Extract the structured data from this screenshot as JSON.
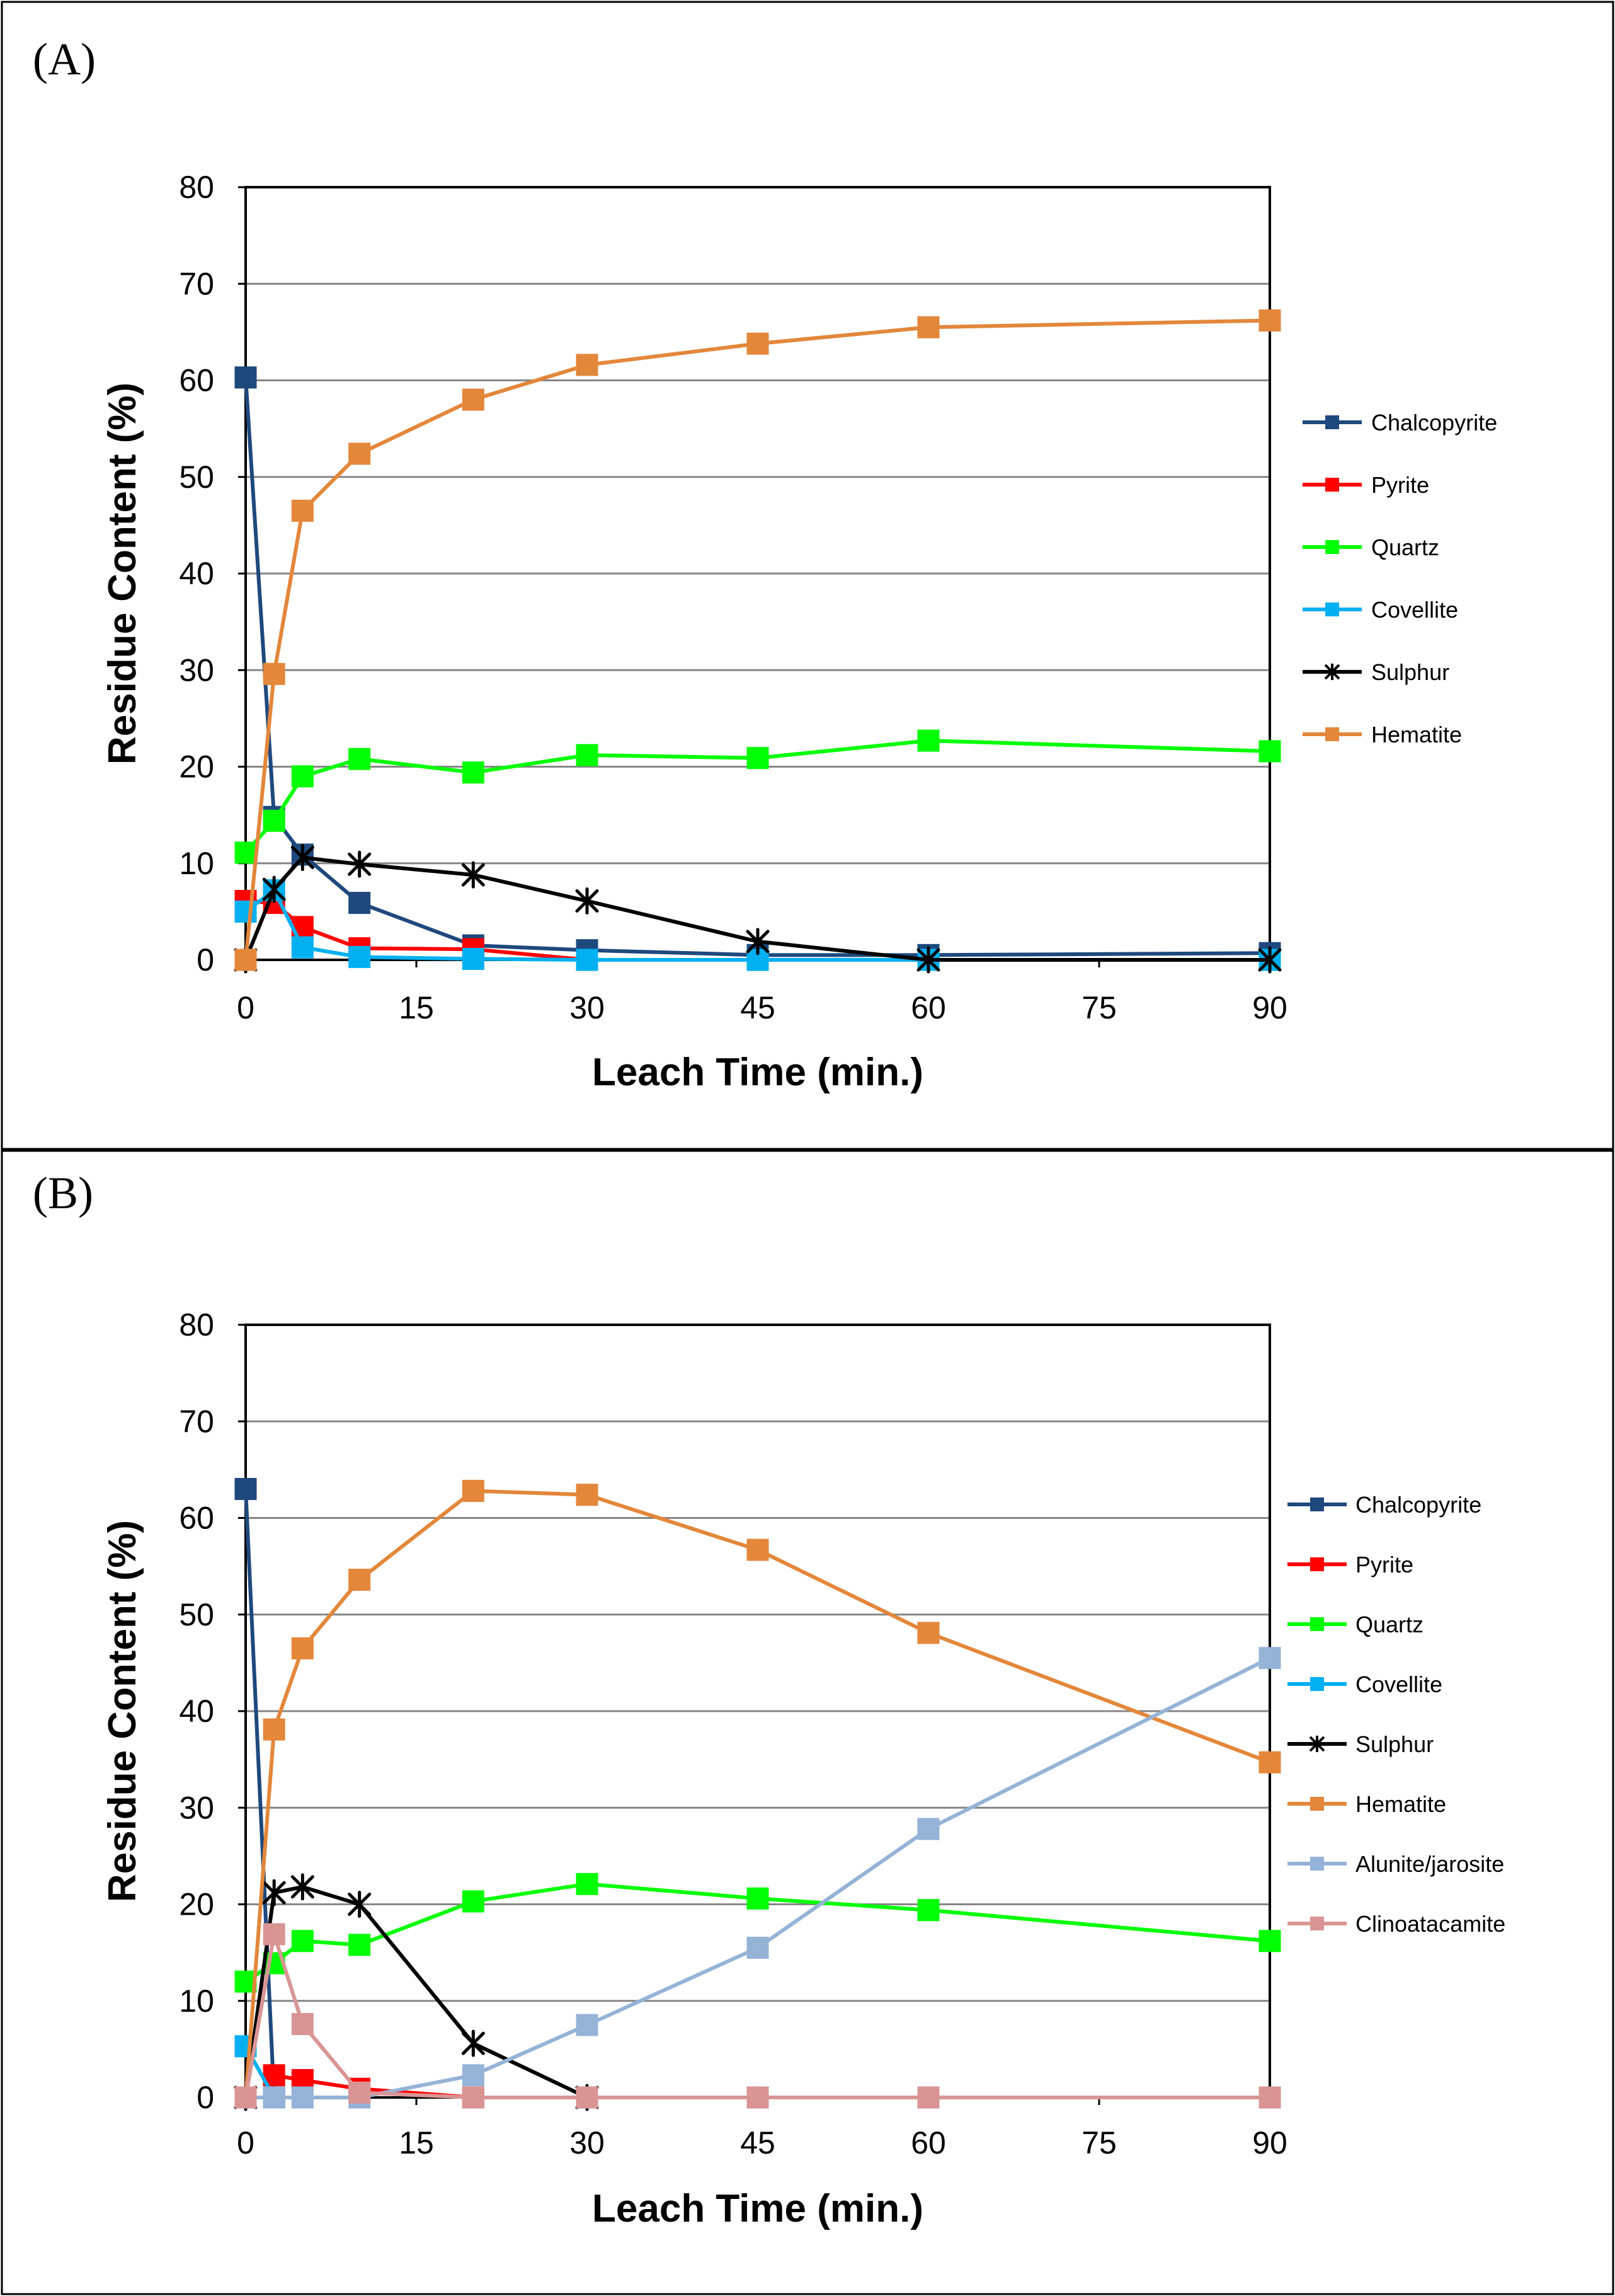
{
  "chart_data": [
    {
      "panel_label": "(A)",
      "type": "line",
      "xlabel": "Leach Time (min.)",
      "ylabel": "Residue Content (%)",
      "x_ticks": [
        "0",
        "15",
        "30",
        "45",
        "60",
        "75",
        "90"
      ],
      "y_ticks": [
        "0",
        "10",
        "20",
        "30",
        "40",
        "50",
        "60",
        "70",
        "80"
      ],
      "ylim": [
        0,
        80
      ],
      "grid": true,
      "legend_position": "right",
      "x": [
        0,
        2.5,
        5,
        10,
        20,
        30,
        45,
        60,
        90
      ],
      "series": [
        {
          "name": "Chalcopyrite",
          "color": "#1f497d",
          "marker": "square",
          "values": [
            60.3,
            14.8,
            10.9,
            5.9,
            1.5,
            1.0,
            0.5,
            0.5,
            0.7
          ]
        },
        {
          "name": "Pyrite",
          "color": "#ff0000",
          "marker": "square",
          "values": [
            6.1,
            5.9,
            3.4,
            1.2,
            1.1,
            0.0,
            0.0,
            0.0,
            0.0
          ]
        },
        {
          "name": "Quartz",
          "color": "#00ff00",
          "marker": "square",
          "values": [
            11.1,
            14.4,
            19.0,
            20.8,
            19.4,
            21.2,
            20.9,
            22.7,
            21.6
          ]
        },
        {
          "name": "Covellite",
          "color": "#00b0f0",
          "marker": "square",
          "values": [
            5.0,
            7.2,
            1.3,
            0.3,
            0.1,
            0.0,
            0.0,
            0.0,
            0.0
          ]
        },
        {
          "name": "Sulphur",
          "color": "#000000",
          "marker": "star",
          "values": [
            0.0,
            7.3,
            10.6,
            9.9,
            8.8,
            6.1,
            1.9,
            0.0,
            0.0
          ]
        },
        {
          "name": "Hematite",
          "color": "#e3873a",
          "marker": "square",
          "values": [
            0.0,
            29.6,
            46.5,
            52.4,
            58.0,
            61.6,
            63.8,
            65.5,
            66.2
          ]
        }
      ]
    },
    {
      "panel_label": "(B)",
      "type": "line",
      "xlabel": "Leach Time (min.)",
      "ylabel": "Residue Content (%)",
      "x_ticks": [
        "0",
        "15",
        "30",
        "45",
        "60",
        "75",
        "90"
      ],
      "y_ticks": [
        "0",
        "10",
        "20",
        "30",
        "40",
        "50",
        "60",
        "70",
        "80"
      ],
      "ylim": [
        0,
        80
      ],
      "grid": true,
      "legend_position": "right",
      "x": [
        0,
        2.5,
        5,
        10,
        20,
        30,
        45,
        60,
        90
      ],
      "series": [
        {
          "name": "Chalcopyrite",
          "color": "#1f497d",
          "marker": "square",
          "values": [
            63.0,
            0.0,
            null,
            null,
            null,
            null,
            null,
            null,
            null
          ]
        },
        {
          "name": "Pyrite",
          "color": "#ff0000",
          "marker": "square",
          "values": [
            null,
            2.3,
            1.8,
            0.9,
            0.0,
            0.0,
            null,
            null,
            null
          ]
        },
        {
          "name": "Quartz",
          "color": "#00ff00",
          "marker": "square",
          "values": [
            12.0,
            13.9,
            16.2,
            15.8,
            20.3,
            22.1,
            20.6,
            19.4,
            16.2
          ]
        },
        {
          "name": "Covellite",
          "color": "#00b0f0",
          "marker": "square",
          "values": [
            5.3,
            0.0,
            null,
            null,
            null,
            null,
            null,
            null,
            null
          ]
        },
        {
          "name": "Sulphur",
          "color": "#000000",
          "marker": "star",
          "values": [
            0.0,
            21.2,
            21.8,
            20.0,
            5.6,
            0.0,
            null,
            null,
            null
          ]
        },
        {
          "name": "Hematite",
          "color": "#e3873a",
          "marker": "square",
          "values": [
            0.0,
            38.1,
            46.5,
            53.6,
            62.8,
            62.4,
            56.7,
            48.1,
            34.7
          ]
        },
        {
          "name": "Alunite/jarosite",
          "color": "#95b3d7",
          "marker": "square",
          "values": [
            0.0,
            0.0,
            0.0,
            0.0,
            2.3,
            7.5,
            15.5,
            27.8,
            45.5
          ]
        },
        {
          "name": "Clinoatacamite",
          "color": "#d99594",
          "marker": "square",
          "values": [
            0.0,
            16.9,
            7.6,
            0.5,
            0.0,
            0.0,
            0.0,
            0.0,
            0.0
          ]
        }
      ]
    }
  ]
}
